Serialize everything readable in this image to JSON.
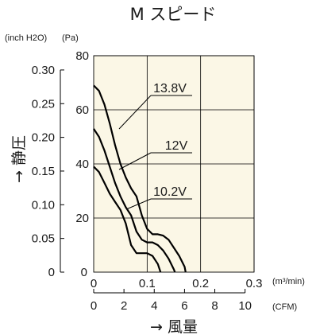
{
  "chart_data": {
    "type": "line",
    "title": "M スピード",
    "xlabel": "→ 風量",
    "ylabel": "→ 静圧",
    "x_unit": "(m³/min)",
    "x2_unit": "(CFM)",
    "y_unit_left": "(inch H2O)",
    "y_unit_right": "(Pa)",
    "xlim": [
      0,
      0.3
    ],
    "ylim": [
      0,
      80
    ],
    "x_ticks": [
      {
        "v": 0.1,
        "label": "0.1"
      },
      {
        "v": 0.2,
        "label": "0.2"
      },
      {
        "v": 0.3,
        "label": "0.3"
      }
    ],
    "x_origin_label": "0",
    "y_ticks": [
      {
        "v": 20,
        "label": "20"
      },
      {
        "v": 40,
        "label": "40"
      },
      {
        "v": 60,
        "label": "60"
      },
      {
        "v": 80,
        "label": "80"
      }
    ],
    "y_origin_label": "0",
    "y2_ticks": [
      {
        "v": 0,
        "label": "0"
      },
      {
        "v": 0.05,
        "label": "0.05"
      },
      {
        "v": 0.1,
        "label": "0.10"
      },
      {
        "v": 0.15,
        "label": "0.15"
      },
      {
        "v": 0.2,
        "label": "0.20"
      },
      {
        "v": 0.25,
        "label": "0.25"
      },
      {
        "v": 0.3,
        "label": "0.30"
      }
    ],
    "x2_ticks": [
      {
        "v": 0,
        "label": "0"
      },
      {
        "v": 2,
        "label": "2"
      },
      {
        "v": 4,
        "label": "4"
      },
      {
        "v": 6,
        "label": "6"
      },
      {
        "v": 8,
        "label": "8"
      },
      {
        "v": 10,
        "label": "10"
      }
    ],
    "grid": true,
    "series": [
      {
        "name": "13.8V",
        "x": [
          0,
          0.01,
          0.02,
          0.03,
          0.04,
          0.05,
          0.06,
          0.07,
          0.08,
          0.09,
          0.1,
          0.11,
          0.12,
          0.13,
          0.14,
          0.15,
          0.16,
          0.17,
          0.172
        ],
        "y": [
          69,
          67,
          62,
          55,
          47,
          40,
          35,
          31,
          28,
          21,
          16,
          14,
          14,
          13.5,
          12,
          9,
          6,
          2,
          0
        ]
      },
      {
        "name": "12V",
        "x": [
          0,
          0.01,
          0.02,
          0.03,
          0.04,
          0.05,
          0.06,
          0.07,
          0.08,
          0.09,
          0.1,
          0.11,
          0.12,
          0.13,
          0.14,
          0.15,
          0.152
        ],
        "y": [
          53,
          50,
          45,
          39,
          33,
          28,
          24,
          21,
          15,
          12,
          11,
          11,
          10,
          8,
          5,
          1,
          0
        ]
      },
      {
        "name": "10.2V",
        "x": [
          0,
          0.01,
          0.02,
          0.03,
          0.04,
          0.05,
          0.06,
          0.07,
          0.08,
          0.09,
          0.1,
          0.11,
          0.12,
          0.125
        ],
        "y": [
          39,
          37,
          33,
          29,
          26,
          23,
          18,
          10,
          7,
          7,
          7,
          6,
          3,
          0
        ]
      }
    ]
  },
  "colors": {
    "plot_bg": "#fbf7e6",
    "line": "#000000",
    "grid": "#000000"
  }
}
